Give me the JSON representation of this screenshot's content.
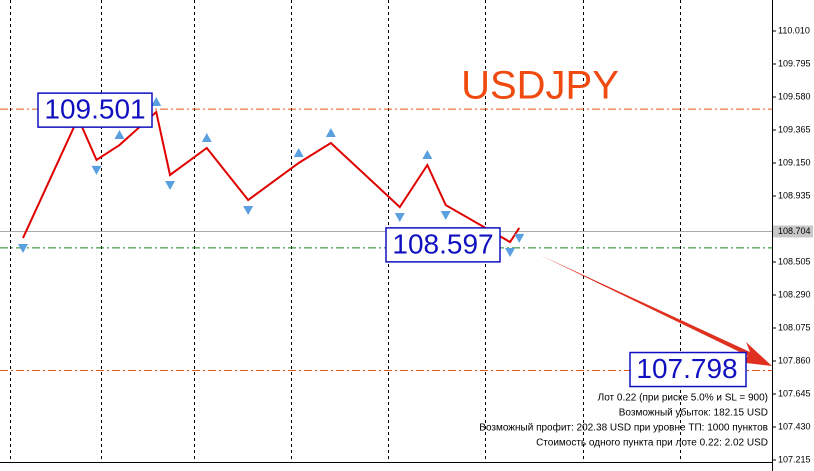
{
  "chart_data": {
    "type": "line",
    "title": "USDJPY",
    "x": [
      5,
      17,
      21,
      26,
      34,
      37,
      45,
      54,
      65,
      72,
      87,
      93,
      97,
      111,
      113
    ],
    "values": [
      108.661,
      109.443,
      109.17,
      109.267,
      109.482,
      109.072,
      109.248,
      108.909,
      109.15,
      109.28,
      108.863,
      109.137,
      108.876,
      108.635,
      108.727
    ],
    "color": "#e00000",
    "xlim": [
      0,
      168
    ],
    "ylim": [
      107.202,
      110.212
    ],
    "yticks": [
      {
        "value": 110.01,
        "label": "110.010"
      },
      109.795,
      {
        "value": 109.58,
        "label": "109.580"
      },
      109.365,
      {
        "value": 109.15,
        "label": "109.150"
      },
      108.935,
      108.505,
      {
        "value": 108.29,
        "label": "108.290"
      },
      108.075,
      {
        "value": 107.86,
        "label": "107.860"
      },
      107.645,
      {
        "value": 107.43,
        "label": "107.430"
      },
      107.215
    ],
    "current_price": 108.704,
    "levels": [
      {
        "value": 109.501,
        "color": "#e05a1a"
      },
      {
        "value": 108.597,
        "color": "#1a8a1a"
      },
      {
        "value": 107.798,
        "color": "#e05a1a"
      }
    ],
    "notes": [
      "Лот 0.22 (при риске 5.0% и SL = 900)",
      "Возможный убыток: 182.15 USD",
      "Возможный профит: 202.38 USD при уровне ТП: 1000 пунктов",
      "Стоимость одного пункта при лоте 0.22: 2.02 USD"
    ]
  }
}
